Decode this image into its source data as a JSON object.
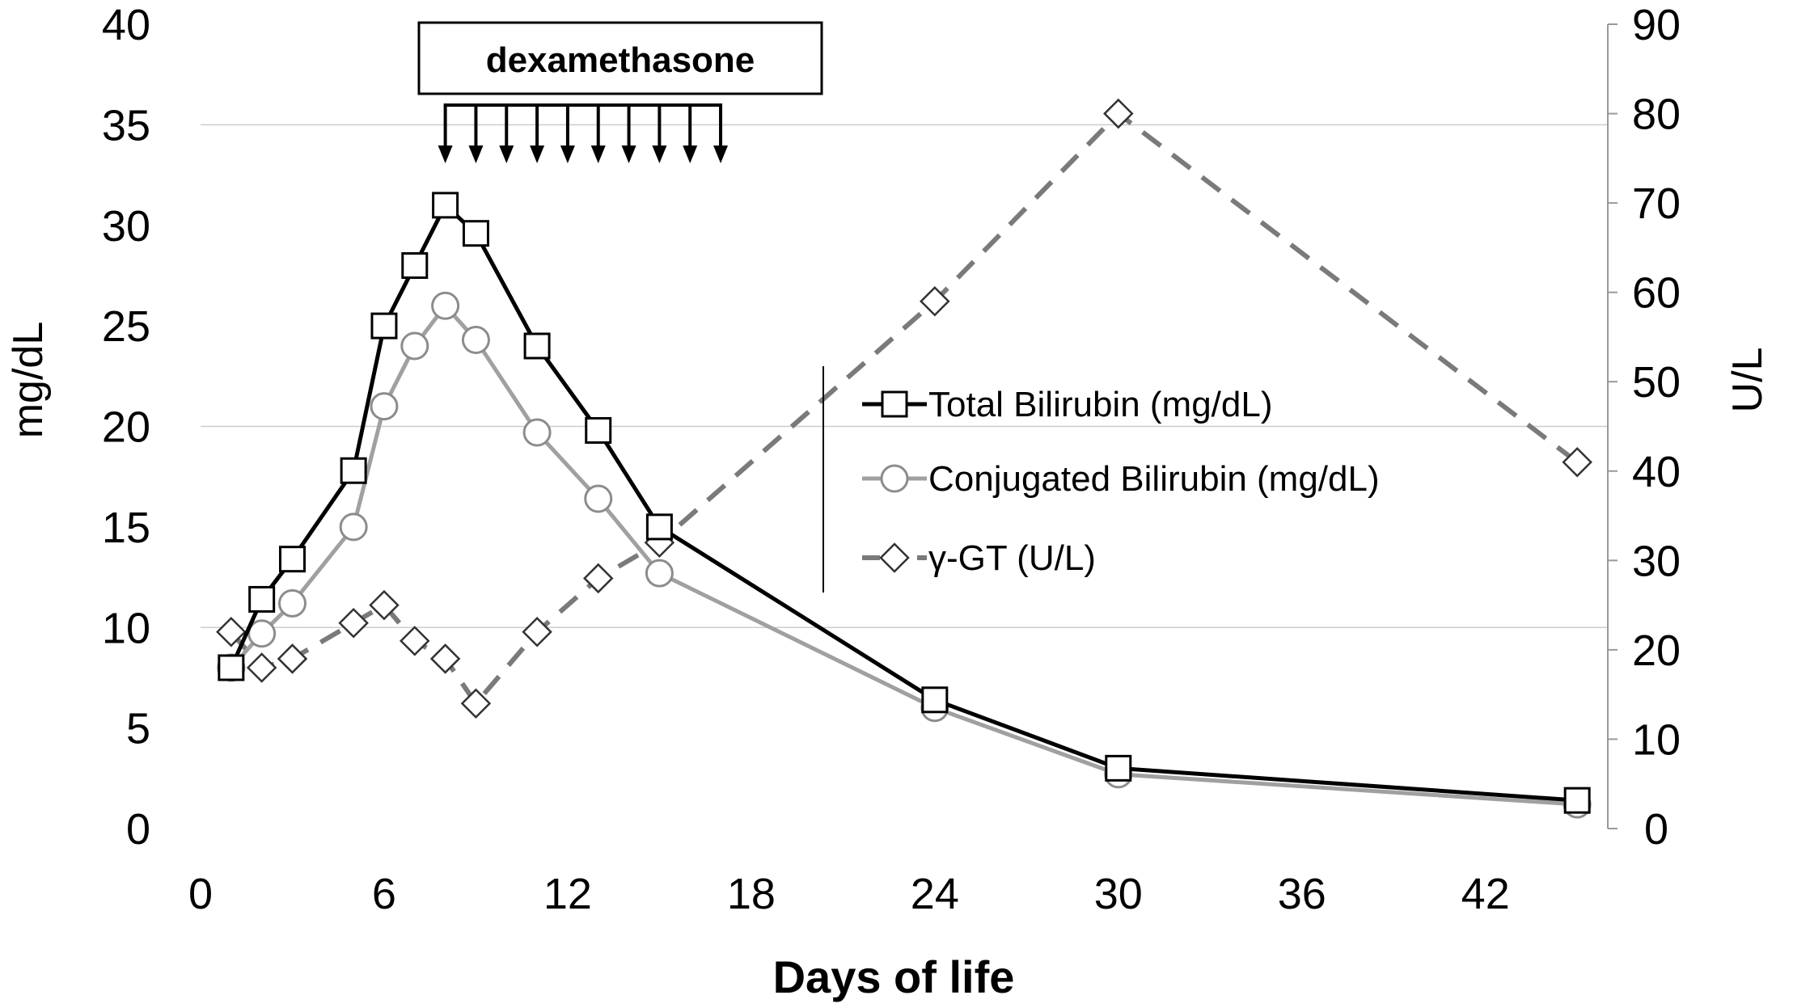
{
  "chart_data": {
    "type": "line",
    "xlabel": "Days of life",
    "ylabel": "mg/dL",
    "y2label": "U/L",
    "xlim": [
      0,
      46
    ],
    "ylim": [
      0,
      40
    ],
    "y2lim": [
      0,
      90
    ],
    "xticks": [
      0,
      6,
      12,
      18,
      24,
      30,
      36,
      42
    ],
    "yticks": [
      0,
      5,
      10,
      15,
      20,
      25,
      30,
      35,
      40
    ],
    "y2ticks": [
      0,
      10,
      20,
      30,
      40,
      50,
      60,
      70,
      80,
      90
    ],
    "gridlines_y": [
      10,
      20,
      35
    ],
    "annotation": {
      "label": "dexamethasone",
      "arrow_days": [
        8,
        9,
        10,
        11,
        12,
        13,
        14,
        15,
        16,
        17
      ]
    },
    "legend_position": "center-right",
    "series": [
      {
        "name": "Total Bilirubin (mg/dL)",
        "axis": "left",
        "color": "#000000",
        "line": "solid",
        "marker": "square",
        "x": [
          1,
          2,
          3,
          5,
          6,
          7,
          8,
          9,
          11,
          13,
          15,
          24,
          30,
          45
        ],
        "values": [
          8,
          11.4,
          13.4,
          17.8,
          25,
          28,
          31,
          29.6,
          24,
          19.8,
          15,
          6.4,
          3,
          1.4
        ]
      },
      {
        "name": "Conjugated Bilirubin (mg/dL)",
        "axis": "left",
        "color": "#a0a0a0",
        "line": "solid",
        "marker": "circle",
        "x": [
          1,
          2,
          3,
          5,
          6,
          7,
          8,
          9,
          11,
          13,
          15,
          24,
          30,
          45
        ],
        "values": [
          8,
          9.7,
          11.2,
          15,
          21,
          24,
          26,
          24.3,
          19.7,
          16.4,
          12.7,
          6,
          2.7,
          1.2
        ]
      },
      {
        "name": "γ-GT (U/L)",
        "axis": "right",
        "color": "#7a7a7a",
        "line": "dashed",
        "marker": "diamond",
        "x": [
          1,
          2,
          3,
          5,
          6,
          7,
          8,
          9,
          11,
          13,
          15,
          24,
          30,
          45
        ],
        "values": [
          22,
          18,
          19,
          23,
          25,
          21,
          19,
          14,
          22,
          28,
          32,
          59,
          80,
          41
        ]
      }
    ]
  }
}
